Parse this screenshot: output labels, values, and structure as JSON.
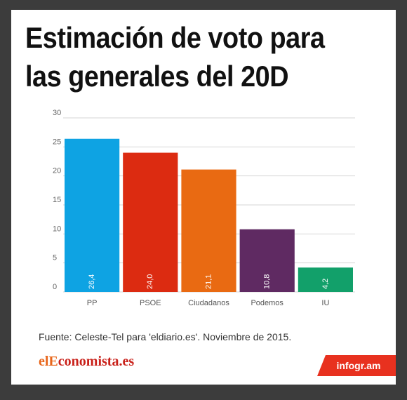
{
  "header": {
    "title_line1": "Estimación de voto para",
    "title_line2": "las generales del 20D"
  },
  "chart_data": {
    "type": "bar",
    "title": "Estimación de voto para las generales del 20D",
    "categories": [
      "PP",
      "PSOE",
      "Ciudadanos",
      "Podemos",
      "IU"
    ],
    "values": [
      26.4,
      24.0,
      21.1,
      10.8,
      4.2
    ],
    "value_labels": [
      "26,4",
      "24,0",
      "21,1",
      "10,8",
      "4,2"
    ],
    "colors": [
      "#0ea3e3",
      "#dc2b11",
      "#e96a12",
      "#5f2a62",
      "#12a06a"
    ],
    "ylim": [
      0,
      30
    ],
    "yticks": [
      0,
      5,
      10,
      15,
      20,
      25,
      30
    ],
    "ytick_labels": [
      "0",
      "5",
      "10",
      "15",
      "20",
      "25",
      "30"
    ],
    "xlabel": "",
    "ylabel": "",
    "grid": true
  },
  "footer": {
    "source": "Fuente:  Celeste-Tel para 'eldiario.es'.  Noviembre de 2015.",
    "logo_part1": "elE",
    "logo_part2": "conomista.es",
    "badge": "infogr.am"
  }
}
